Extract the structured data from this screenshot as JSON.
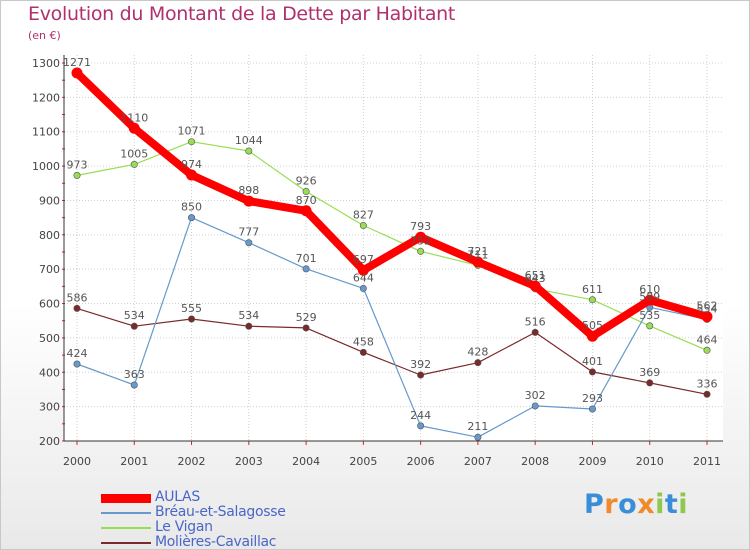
{
  "chart_data": {
    "type": "line",
    "title": "Evolution du Montant de la Dette par Habitant",
    "subtitle": "(en €)",
    "xlabel": "",
    "ylabel": "",
    "x": [
      "2000",
      "2001",
      "2002",
      "2003",
      "2004",
      "2005",
      "2006",
      "2007",
      "2008",
      "2009",
      "2010",
      "2011"
    ],
    "y_ticks": [
      "200",
      "300",
      "400",
      "500",
      "600",
      "700",
      "800",
      "900",
      "1000",
      "1100",
      "1200",
      "1300"
    ],
    "ylim": [
      200,
      1300
    ],
    "grid": true,
    "legend_position": "bottom-left",
    "series": [
      {
        "name": "AULAS",
        "color": "#ff0000",
        "values": [
          1271,
          1110,
          974,
          898,
          870,
          697,
          793,
          721,
          651,
          505,
          610,
          562
        ],
        "labels": [
          "1271",
          "1110",
          "974",
          "898",
          "870",
          "697",
          "793",
          "721",
          "651",
          "505",
          "610",
          "562"
        ]
      },
      {
        "name": "Bréau-et-Salagosse",
        "color": "#6699cc",
        "values": [
          424,
          363,
          850,
          777,
          701,
          644,
          244,
          211,
          302,
          293,
          589,
          554
        ],
        "labels": [
          "424",
          "363",
          "850",
          "777",
          "701",
          "644",
          "244",
          "211",
          "302",
          "293",
          "589",
          "554"
        ]
      },
      {
        "name": "Le Vigan",
        "color": "#99dd55",
        "values": [
          973,
          1005,
          1071,
          1044,
          926,
          827,
          752,
          711,
          643,
          611,
          535,
          464
        ],
        "labels": [
          "973",
          "1005",
          "1071",
          "1044",
          "926",
          "827",
          "752",
          "711",
          "643",
          "611",
          "535",
          "464"
        ]
      },
      {
        "name": "Molières-Cavaillac",
        "color": "#7a2a2a",
        "values": [
          586,
          534,
          555,
          534,
          529,
          458,
          392,
          428,
          516,
          401,
          369,
          336
        ],
        "labels": [
          "586",
          "534",
          "555",
          "534",
          "529",
          "458",
          "392",
          "428",
          "516",
          "401",
          "369",
          "336"
        ]
      }
    ]
  },
  "brand": {
    "letters": [
      "P",
      "r",
      "o",
      "x",
      "i",
      "t",
      "i"
    ],
    "colors": [
      "#3a8ed8",
      "#f08a2a",
      "#3a8ed8",
      "#f08a2a",
      "#8fc84a",
      "#3a8ed8",
      "#8fc84a"
    ]
  }
}
